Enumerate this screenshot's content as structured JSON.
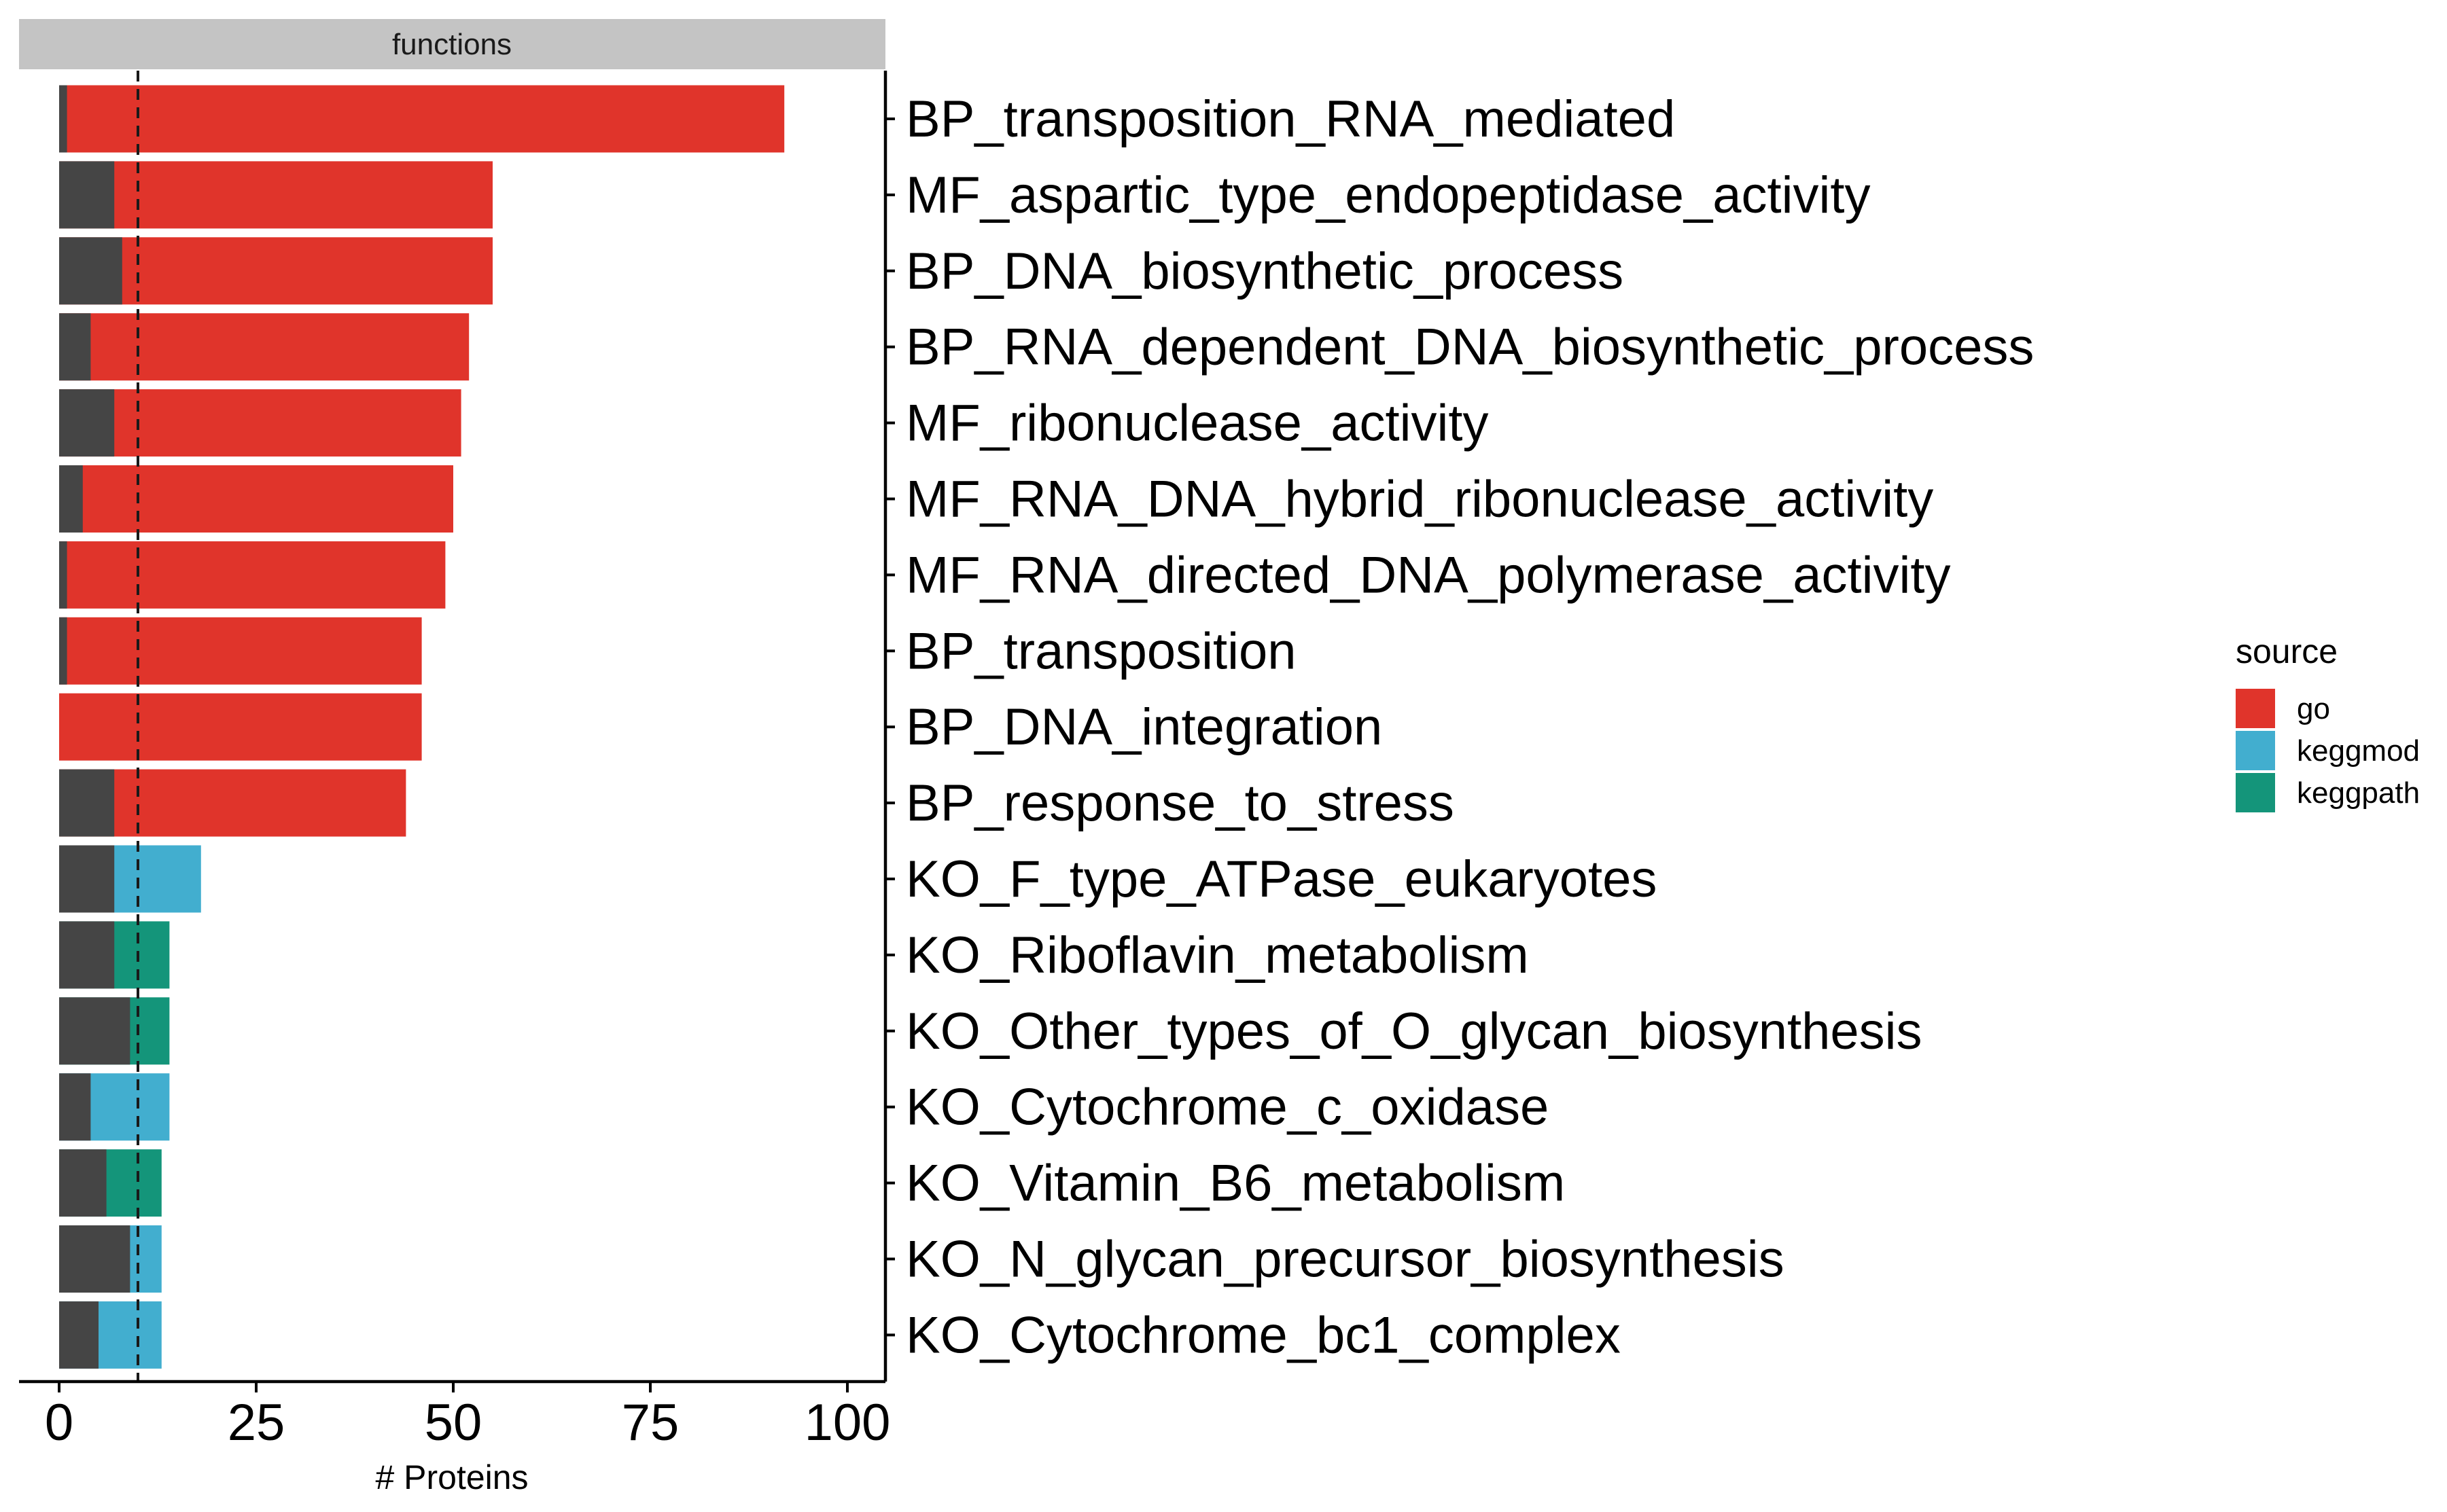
{
  "chart_data": {
    "type": "bar",
    "orientation": "horizontal",
    "stacked": true,
    "facet_label": "functions",
    "xlabel": "# Proteins",
    "ylabel": "",
    "xlim": [
      -5,
      105
    ],
    "xticks": [
      0,
      25,
      50,
      75,
      100
    ],
    "reference_line": 10,
    "categories": [
      "BP_transposition_RNA_mediated",
      "MF_aspartic_type_endopeptidase_activity",
      "BP_DNA_biosynthetic_process",
      "BP_RNA_dependent_DNA_biosynthetic_process",
      "MF_ribonuclease_activity",
      "MF_RNA_DNA_hybrid_ribonuclease_activity",
      "MF_RNA_directed_DNA_polymerase_activity",
      "BP_transposition",
      "BP_DNA_integration",
      "BP_response_to_stress",
      "KO_F_type_ATPase_eukaryotes",
      "KO_Riboflavin_metabolism",
      "KO_Other_types_of_O_glycan_biosynthesis",
      "KO_Cytochrome_c_oxidase",
      "KO_Vitamin_B6_metabolism",
      "KO_N_glycan_precursor_biosynthesis",
      "KO_Cytochrome_bc1_complex"
    ],
    "dark_values": [
      1,
      7,
      8,
      4,
      7,
      3,
      1,
      1,
      0,
      7,
      7,
      7,
      9,
      4,
      6,
      9,
      5
    ],
    "totals": [
      92,
      55,
      55,
      52,
      51,
      50,
      49,
      46,
      46,
      44,
      18,
      14,
      14,
      14,
      13,
      13,
      13
    ],
    "sources": [
      "go",
      "go",
      "go",
      "go",
      "go",
      "go",
      "go",
      "go",
      "go",
      "go",
      "keggmod",
      "keggpath",
      "keggpath",
      "keggmod",
      "keggpath",
      "keggmod",
      "keggmod"
    ],
    "dark_color": "#454545",
    "legend": {
      "title": "source",
      "position": "right",
      "entries": [
        {
          "name": "go",
          "color": "#E0342B"
        },
        {
          "name": "keggmod",
          "color": "#42AECF"
        },
        {
          "name": "keggpath",
          "color": "#14957A"
        }
      ]
    },
    "grid": false
  }
}
